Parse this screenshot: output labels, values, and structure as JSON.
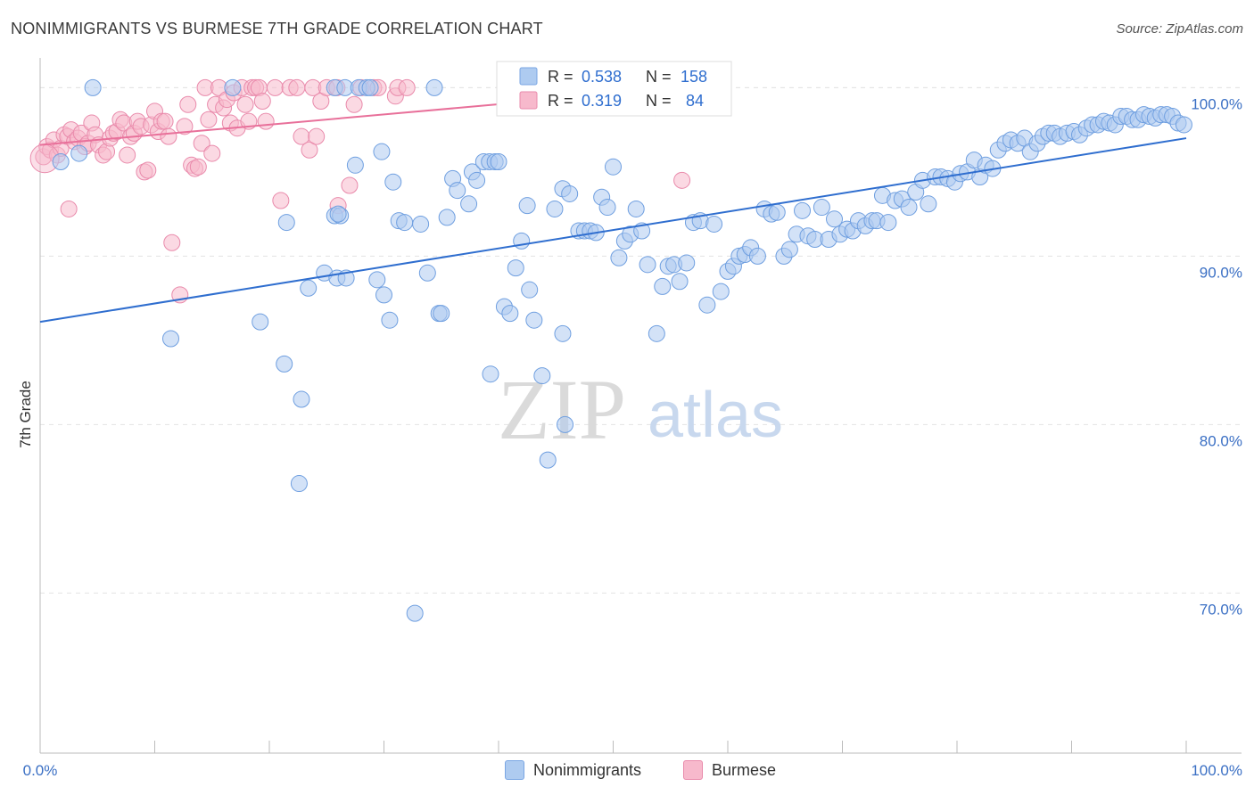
{
  "title": "NONIMMIGRANTS VS BURMESE 7TH GRADE CORRELATION CHART",
  "source": "Source: ZipAtlas.com",
  "watermark": {
    "zip": "ZIP",
    "atlas": "atlas"
  },
  "colors": {
    "blue": "#2f6ecf",
    "blue_fill": "#aecbf0",
    "pink": "#e8709a",
    "pink_fill": "#f7b9cc",
    "tick": "#3a6fc4"
  },
  "legend": {
    "blue": {
      "r_label": "R = ",
      "r_value": "0.538",
      "n_label": "N = ",
      "n_value": "158"
    },
    "pink": {
      "r_label": "R = ",
      "r_value": "0.319",
      "n_label": "N = ",
      "n_value": "84"
    }
  },
  "bottom_legend": {
    "blue_label": "Nonimmigrants",
    "pink_label": "Burmese"
  },
  "chart_data": {
    "type": "scatter",
    "title": "NONIMMIGRANTS VS BURMESE 7TH GRADE CORRELATION CHART",
    "xlabel": "",
    "ylabel": "7th Grade",
    "xlim": [
      0,
      100
    ],
    "ylim": [
      60.5,
      101.5
    ],
    "x_tick_labels": [
      "0.0%",
      "100.0%"
    ],
    "y_ticks": [
      70,
      80,
      90,
      100
    ],
    "y_tick_labels": [
      "70.0%",
      "80.0%",
      "90.0%",
      "100.0%"
    ],
    "grid": true,
    "legend_position": "top-center",
    "series": [
      {
        "name": "Nonimmigrants",
        "color": "#2f6ecf",
        "trend": {
          "x": [
            0,
            100
          ],
          "y": [
            86.1,
            97.0
          ]
        },
        "points": [
          [
            4.6,
            100
          ],
          [
            16.8,
            100
          ],
          [
            25.7,
            100
          ],
          [
            26.6,
            100
          ],
          [
            34.4,
            100
          ],
          [
            27.8,
            100
          ],
          [
            28.5,
            100
          ],
          [
            28.8,
            100
          ],
          [
            11.4,
            85.1
          ],
          [
            19.2,
            86.1
          ],
          [
            21.3,
            83.6
          ],
          [
            22.8,
            81.5
          ],
          [
            22.6,
            76.5
          ],
          [
            23.4,
            88.1
          ],
          [
            24.8,
            89.0
          ],
          [
            25.9,
            88.7
          ],
          [
            26.7,
            88.7
          ],
          [
            21.5,
            92.0
          ],
          [
            25.7,
            92.4
          ],
          [
            26.2,
            92.4
          ],
          [
            27.5,
            95.4
          ],
          [
            29.4,
            88.6
          ],
          [
            30.0,
            87.7
          ],
          [
            29.8,
            96.2
          ],
          [
            30.5,
            86.2
          ],
          [
            30.8,
            94.4
          ],
          [
            31.3,
            92.1
          ],
          [
            33.2,
            91.9
          ],
          [
            33.8,
            89.0
          ],
          [
            34.8,
            86.6
          ],
          [
            35.0,
            86.6
          ],
          [
            35.5,
            92.3
          ],
          [
            36.0,
            94.6
          ],
          [
            36.4,
            93.9
          ],
          [
            37.4,
            93.1
          ],
          [
            37.7,
            95.0
          ],
          [
            38.1,
            94.5
          ],
          [
            38.7,
            95.6
          ],
          [
            39.2,
            95.6
          ],
          [
            39.7,
            95.6
          ],
          [
            40.0,
            95.6
          ],
          [
            39.3,
            83.0
          ],
          [
            40.5,
            87.0
          ],
          [
            41.0,
            86.6
          ],
          [
            41.5,
            89.3
          ],
          [
            42.0,
            90.9
          ],
          [
            42.7,
            88.0
          ],
          [
            42.5,
            93.0
          ],
          [
            43.1,
            86.2
          ],
          [
            43.8,
            82.9
          ],
          [
            44.3,
            77.9
          ],
          [
            44.9,
            92.8
          ],
          [
            45.6,
            85.4
          ],
          [
            45.6,
            94.0
          ],
          [
            46.2,
            93.7
          ],
          [
            47.0,
            91.5
          ],
          [
            47.5,
            91.5
          ],
          [
            48.0,
            91.5
          ],
          [
            48.5,
            91.4
          ],
          [
            49.0,
            93.5
          ],
          [
            49.5,
            92.9
          ],
          [
            50.0,
            95.3
          ],
          [
            50.5,
            89.9
          ],
          [
            51.0,
            90.9
          ],
          [
            51.5,
            91.3
          ],
          [
            52.0,
            92.8
          ],
          [
            52.5,
            91.5
          ],
          [
            53.0,
            89.5
          ],
          [
            53.8,
            85.4
          ],
          [
            54.3,
            88.2
          ],
          [
            54.8,
            89.4
          ],
          [
            55.3,
            89.5
          ],
          [
            55.8,
            88.5
          ],
          [
            56.4,
            89.6
          ],
          [
            57.0,
            92.0
          ],
          [
            57.6,
            92.1
          ],
          [
            58.2,
            87.1
          ],
          [
            58.8,
            91.9
          ],
          [
            59.4,
            87.9
          ],
          [
            60.0,
            89.1
          ],
          [
            60.5,
            89.4
          ],
          [
            61.0,
            90.0
          ],
          [
            61.5,
            90.1
          ],
          [
            62.0,
            90.5
          ],
          [
            62.6,
            90.0
          ],
          [
            63.2,
            92.8
          ],
          [
            63.8,
            92.5
          ],
          [
            64.3,
            92.6
          ],
          [
            64.9,
            90.0
          ],
          [
            65.4,
            90.4
          ],
          [
            66.0,
            91.3
          ],
          [
            66.5,
            92.7
          ],
          [
            67.0,
            91.2
          ],
          [
            67.6,
            91.0
          ],
          [
            68.2,
            92.9
          ],
          [
            68.8,
            91.0
          ],
          [
            69.3,
            92.2
          ],
          [
            69.8,
            91.3
          ],
          [
            70.4,
            91.6
          ],
          [
            70.9,
            91.5
          ],
          [
            71.4,
            92.1
          ],
          [
            72.0,
            91.8
          ],
          [
            72.6,
            92.1
          ],
          [
            73.0,
            92.1
          ],
          [
            73.5,
            93.6
          ],
          [
            74.0,
            92.0
          ],
          [
            74.6,
            93.3
          ],
          [
            75.2,
            93.4
          ],
          [
            75.8,
            92.9
          ],
          [
            76.4,
            93.8
          ],
          [
            77.0,
            94.5
          ],
          [
            77.5,
            93.1
          ],
          [
            78.1,
            94.7
          ],
          [
            78.6,
            94.7
          ],
          [
            79.2,
            94.6
          ],
          [
            79.8,
            94.4
          ],
          [
            80.3,
            94.9
          ],
          [
            80.9,
            95.0
          ],
          [
            81.5,
            95.7
          ],
          [
            82.0,
            94.7
          ],
          [
            82.5,
            95.4
          ],
          [
            83.1,
            95.2
          ],
          [
            83.6,
            96.3
          ],
          [
            84.2,
            96.7
          ],
          [
            84.7,
            96.9
          ],
          [
            85.3,
            96.7
          ],
          [
            85.9,
            97.0
          ],
          [
            86.4,
            96.2
          ],
          [
            87.0,
            96.7
          ],
          [
            87.5,
            97.1
          ],
          [
            88.0,
            97.3
          ],
          [
            88.5,
            97.3
          ],
          [
            89.0,
            97.1
          ],
          [
            89.6,
            97.3
          ],
          [
            90.2,
            97.4
          ],
          [
            90.7,
            97.2
          ],
          [
            91.3,
            97.6
          ],
          [
            91.8,
            97.8
          ],
          [
            92.3,
            97.8
          ],
          [
            92.8,
            98.0
          ],
          [
            93.3,
            97.9
          ],
          [
            93.8,
            97.8
          ],
          [
            94.3,
            98.3
          ],
          [
            94.8,
            98.3
          ],
          [
            95.3,
            98.1
          ],
          [
            95.8,
            98.1
          ],
          [
            96.3,
            98.4
          ],
          [
            96.8,
            98.3
          ],
          [
            97.3,
            98.2
          ],
          [
            97.8,
            98.4
          ],
          [
            98.3,
            98.4
          ],
          [
            98.8,
            98.3
          ],
          [
            99.3,
            97.9
          ],
          [
            99.8,
            97.8
          ],
          [
            1.8,
            95.6
          ],
          [
            3.4,
            96.1
          ],
          [
            26.0,
            92.5
          ],
          [
            31.8,
            92.0
          ],
          [
            45.8,
            80.0
          ],
          [
            32.7,
            68.8
          ]
        ]
      },
      {
        "name": "Burmese",
        "color": "#e8709a",
        "trend": {
          "x": [
            0,
            58
          ],
          "y": [
            96.6,
            100.1
          ]
        },
        "points": [
          [
            0.3,
            95.9
          ],
          [
            0.6,
            96.5
          ],
          [
            0.9,
            96.3
          ],
          [
            1.2,
            96.9
          ],
          [
            1.5,
            96.0
          ],
          [
            1.8,
            96.4
          ],
          [
            2.1,
            97.2
          ],
          [
            2.4,
            97.1
          ],
          [
            2.7,
            97.5
          ],
          [
            3.0,
            96.8
          ],
          [
            3.3,
            97.0
          ],
          [
            3.6,
            97.3
          ],
          [
            3.9,
            96.5
          ],
          [
            4.2,
            96.7
          ],
          [
            4.5,
            97.9
          ],
          [
            4.8,
            97.2
          ],
          [
            5.1,
            96.6
          ],
          [
            5.5,
            96.0
          ],
          [
            5.8,
            96.2
          ],
          [
            6.1,
            97.0
          ],
          [
            6.4,
            97.3
          ],
          [
            6.7,
            97.4
          ],
          [
            7.0,
            98.1
          ],
          [
            7.3,
            97.9
          ],
          [
            7.6,
            96.0
          ],
          [
            7.9,
            97.1
          ],
          [
            8.2,
            97.3
          ],
          [
            8.5,
            98.0
          ],
          [
            8.8,
            97.7
          ],
          [
            9.1,
            95.0
          ],
          [
            9.4,
            95.1
          ],
          [
            9.7,
            97.8
          ],
          [
            10.0,
            98.6
          ],
          [
            10.3,
            97.4
          ],
          [
            10.6,
            98.0
          ],
          [
            10.9,
            98.0
          ],
          [
            11.2,
            97.1
          ],
          [
            11.5,
            90.8
          ],
          [
            12.2,
            87.7
          ],
          [
            12.6,
            97.7
          ],
          [
            12.9,
            99.0
          ],
          [
            13.2,
            95.4
          ],
          [
            13.5,
            95.2
          ],
          [
            13.8,
            95.3
          ],
          [
            14.1,
            96.7
          ],
          [
            14.4,
            100
          ],
          [
            14.7,
            98.1
          ],
          [
            15.0,
            96.1
          ],
          [
            15.3,
            99.0
          ],
          [
            15.6,
            100
          ],
          [
            16.0,
            98.8
          ],
          [
            16.3,
            99.3
          ],
          [
            16.6,
            97.9
          ],
          [
            16.9,
            99.7
          ],
          [
            17.2,
            97.6
          ],
          [
            17.6,
            100
          ],
          [
            17.9,
            99.0
          ],
          [
            18.2,
            98.0
          ],
          [
            18.5,
            100
          ],
          [
            18.8,
            100
          ],
          [
            19.1,
            100
          ],
          [
            19.4,
            99.2
          ],
          [
            19.7,
            98.0
          ],
          [
            20.5,
            100
          ],
          [
            21.0,
            93.3
          ],
          [
            21.8,
            100
          ],
          [
            22.4,
            100
          ],
          [
            22.8,
            97.1
          ],
          [
            23.5,
            96.3
          ],
          [
            23.8,
            100
          ],
          [
            24.1,
            97.1
          ],
          [
            24.5,
            99.2
          ],
          [
            25.0,
            100
          ],
          [
            25.9,
            100
          ],
          [
            26.0,
            93.0
          ],
          [
            27.0,
            94.2
          ],
          [
            27.4,
            99.0
          ],
          [
            28.0,
            100
          ],
          [
            29.1,
            100
          ],
          [
            29.5,
            100
          ],
          [
            31.0,
            99.5
          ],
          [
            31.2,
            100
          ],
          [
            32.0,
            100
          ],
          [
            2.5,
            92.8
          ],
          [
            56.0,
            94.5
          ]
        ]
      }
    ]
  }
}
